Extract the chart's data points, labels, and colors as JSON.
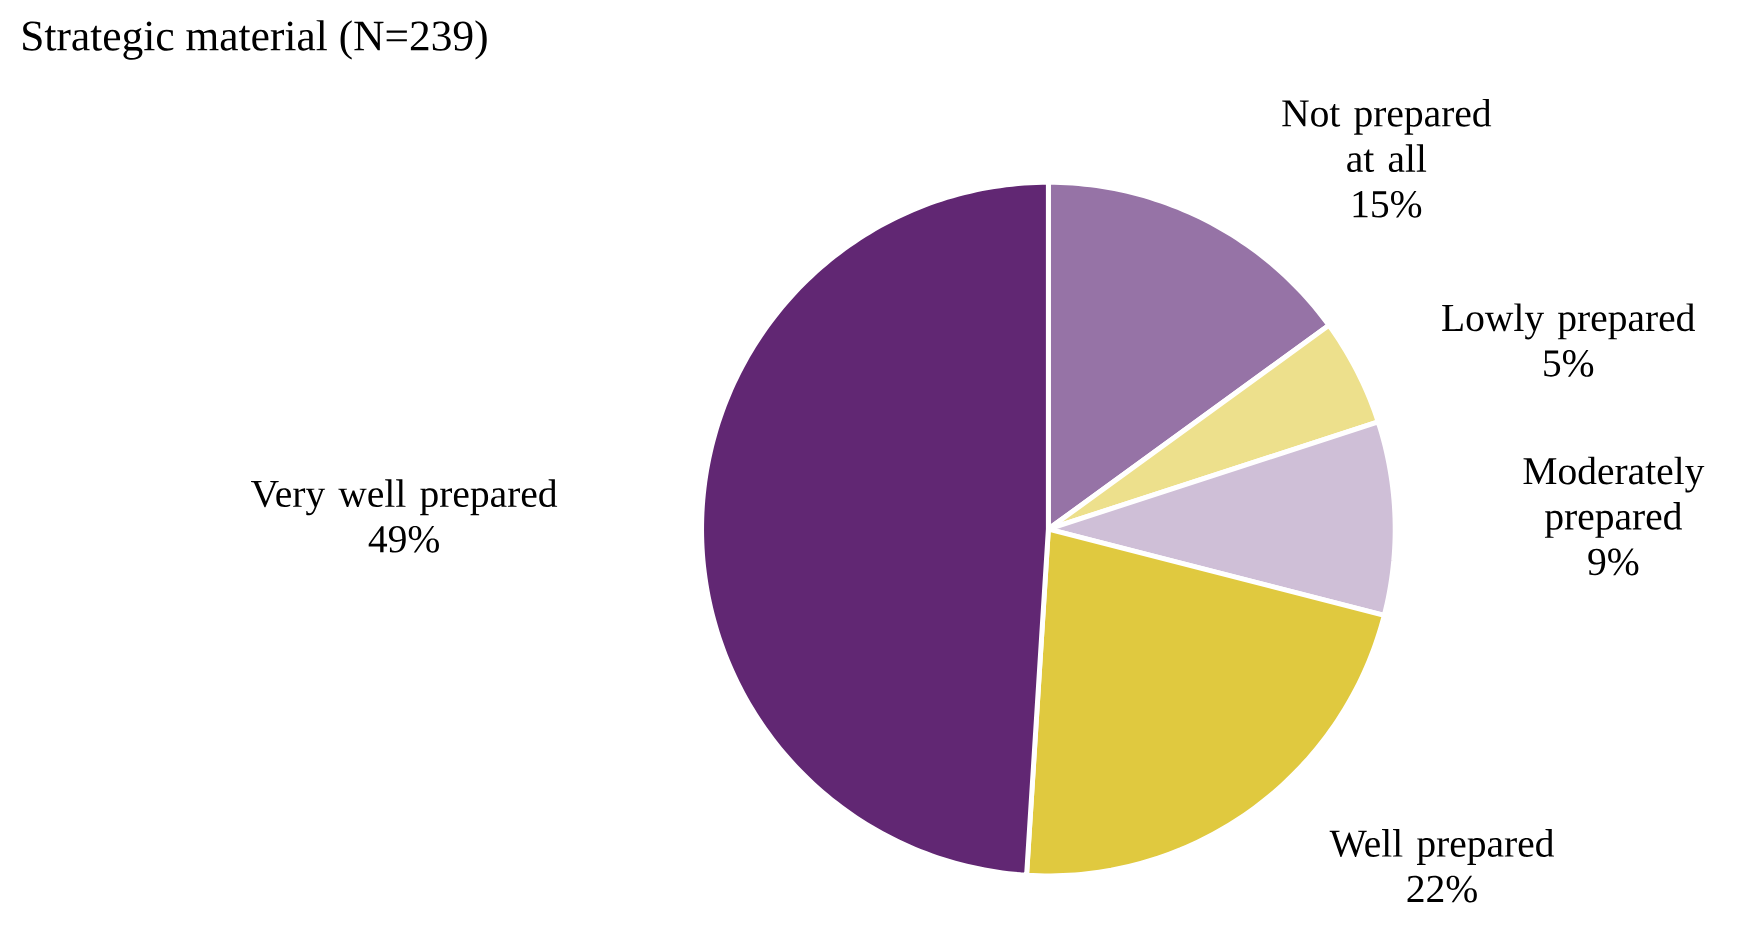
{
  "chart_data": {
    "type": "pie",
    "title": "Strategic material (N=239)",
    "categories": [
      "Not prepared at all",
      "Lowly prepared",
      "Moderately prepared",
      "Well prepared",
      "Very well prepared"
    ],
    "values": [
      15,
      5,
      9,
      22,
      49
    ],
    "value_labels": [
      "15%",
      "5%",
      "9%",
      "22%",
      "49%"
    ],
    "colors": [
      "#9673a6",
      "#ede08c",
      "#cfbfd7",
      "#e0c93f",
      "#612773"
    ]
  }
}
